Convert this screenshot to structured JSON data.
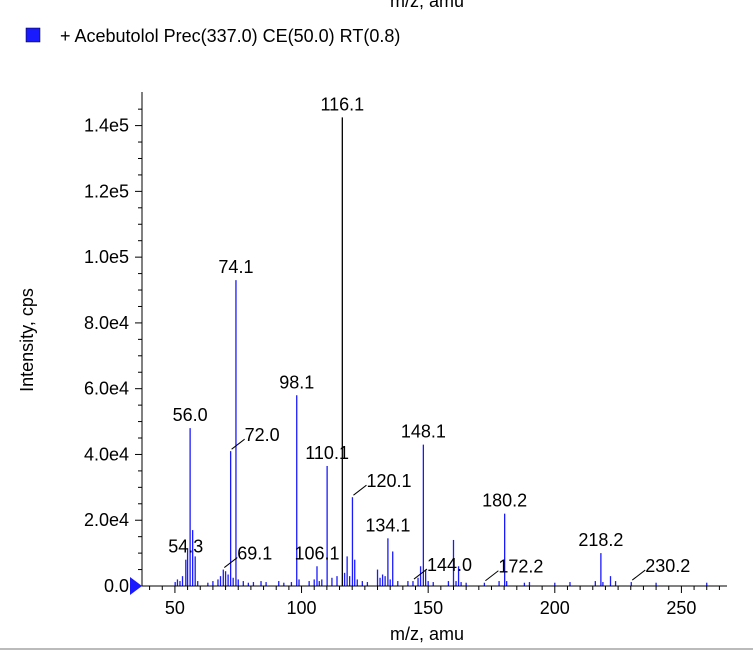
{
  "chart_data": {
    "type": "bar",
    "top_label_cut": "m/z, amu",
    "legend": {
      "label": "+ Acebutolol Prec(337.0) CE(50.0) RT(0.8)",
      "color": "#1a1aff"
    },
    "xlabel": "m/z, amu",
    "ylabel": "Intensity, cps",
    "xlim": [
      37,
      268
    ],
    "ylim": [
      0,
      149000
    ],
    "x_ticks": [
      50,
      100,
      150,
      200,
      250
    ],
    "x_tick_labels": [
      "50",
      "100",
      "150",
      "200",
      "250"
    ],
    "y_ticks": [
      0,
      20000,
      40000,
      60000,
      80000,
      100000,
      120000,
      140000
    ],
    "y_tick_labels": [
      "0.0",
      "2.0e4",
      "4.0e4",
      "6.0e4",
      "8.0e4",
      "1.0e5",
      "1.2e5",
      "1.4e5"
    ],
    "bar_color": "#1a1aff",
    "major_peak_color": "#000000",
    "peaks": [
      {
        "x": 50.1,
        "y": 1200
      },
      {
        "x": 51.0,
        "y": 2000
      },
      {
        "x": 52.0,
        "y": 1500
      },
      {
        "x": 53.0,
        "y": 3000
      },
      {
        "x": 54.3,
        "y": 8000
      },
      {
        "x": 55.0,
        "y": 11500
      },
      {
        "x": 56.0,
        "y": 48000
      },
      {
        "x": 57.0,
        "y": 17000
      },
      {
        "x": 58.0,
        "y": 9000
      },
      {
        "x": 59.0,
        "y": 1500
      },
      {
        "x": 63.0,
        "y": 1000
      },
      {
        "x": 65.0,
        "y": 1500
      },
      {
        "x": 67.0,
        "y": 2000
      },
      {
        "x": 68.0,
        "y": 3000
      },
      {
        "x": 69.1,
        "y": 5000
      },
      {
        "x": 70.0,
        "y": 4500
      },
      {
        "x": 71.0,
        "y": 3500
      },
      {
        "x": 72.0,
        "y": 41000
      },
      {
        "x": 73.0,
        "y": 2500
      },
      {
        "x": 74.1,
        "y": 93000
      },
      {
        "x": 75.0,
        "y": 2000
      },
      {
        "x": 77.0,
        "y": 1500
      },
      {
        "x": 79.0,
        "y": 1000
      },
      {
        "x": 81.0,
        "y": 1200
      },
      {
        "x": 84.0,
        "y": 1500
      },
      {
        "x": 86.0,
        "y": 1200
      },
      {
        "x": 91.0,
        "y": 1500
      },
      {
        "x": 93.0,
        "y": 1000
      },
      {
        "x": 96.0,
        "y": 1200
      },
      {
        "x": 98.1,
        "y": 58000
      },
      {
        "x": 99.0,
        "y": 2000
      },
      {
        "x": 103.0,
        "y": 1500
      },
      {
        "x": 105.0,
        "y": 2000
      },
      {
        "x": 106.1,
        "y": 6000
      },
      {
        "x": 107.0,
        "y": 1500
      },
      {
        "x": 108.0,
        "y": 2000
      },
      {
        "x": 110.1,
        "y": 36500
      },
      {
        "x": 112.0,
        "y": 2500
      },
      {
        "x": 114.0,
        "y": 3000
      },
      {
        "x": 116.1,
        "y": 142500
      },
      {
        "x": 117.0,
        "y": 4000
      },
      {
        "x": 118.0,
        "y": 9000
      },
      {
        "x": 119.0,
        "y": 3000
      },
      {
        "x": 120.1,
        "y": 27000
      },
      {
        "x": 121.0,
        "y": 8000
      },
      {
        "x": 122.0,
        "y": 2000
      },
      {
        "x": 124.0,
        "y": 1500
      },
      {
        "x": 126.0,
        "y": 1200
      },
      {
        "x": 130.0,
        "y": 5000
      },
      {
        "x": 131.0,
        "y": 2500
      },
      {
        "x": 132.0,
        "y": 3500
      },
      {
        "x": 133.0,
        "y": 3000
      },
      {
        "x": 134.1,
        "y": 14500
      },
      {
        "x": 135.0,
        "y": 2000
      },
      {
        "x": 136.0,
        "y": 10500
      },
      {
        "x": 138.0,
        "y": 1500
      },
      {
        "x": 142.0,
        "y": 1500
      },
      {
        "x": 144.0,
        "y": 1500
      },
      {
        "x": 146.0,
        "y": 2500
      },
      {
        "x": 147.0,
        "y": 6000
      },
      {
        "x": 148.1,
        "y": 43000
      },
      {
        "x": 149.0,
        "y": 5000
      },
      {
        "x": 150.0,
        "y": 1500
      },
      {
        "x": 152.0,
        "y": 1200
      },
      {
        "x": 158.0,
        "y": 1500
      },
      {
        "x": 160.0,
        "y": 14000
      },
      {
        "x": 161.0,
        "y": 1500
      },
      {
        "x": 162.0,
        "y": 6000
      },
      {
        "x": 163.0,
        "y": 1200
      },
      {
        "x": 165.0,
        "y": 1000
      },
      {
        "x": 172.2,
        "y": 1000
      },
      {
        "x": 178.0,
        "y": 1500
      },
      {
        "x": 180.2,
        "y": 22000
      },
      {
        "x": 181.0,
        "y": 1500
      },
      {
        "x": 188.0,
        "y": 1000
      },
      {
        "x": 190.0,
        "y": 1200
      },
      {
        "x": 200.0,
        "y": 1000
      },
      {
        "x": 206.0,
        "y": 1200
      },
      {
        "x": 216.0,
        "y": 1500
      },
      {
        "x": 218.2,
        "y": 10000
      },
      {
        "x": 219.0,
        "y": 1200
      },
      {
        "x": 222.0,
        "y": 3000
      },
      {
        "x": 224.0,
        "y": 1500
      },
      {
        "x": 230.2,
        "y": 1200
      },
      {
        "x": 240.0,
        "y": 1000
      },
      {
        "x": 260.0,
        "y": 1000
      }
    ],
    "annotations": [
      {
        "label": "116.1",
        "x": 116.1,
        "y": 142500,
        "pos": "top",
        "leader": false
      },
      {
        "label": "74.1",
        "x": 74.1,
        "y": 93000,
        "pos": "top",
        "leader": false
      },
      {
        "label": "98.1",
        "x": 98.1,
        "y": 58000,
        "pos": "top",
        "leader": false
      },
      {
        "label": "56.0",
        "x": 56.0,
        "y": 48000,
        "pos": "top",
        "leader": false
      },
      {
        "label": "72.0",
        "x": 72.0,
        "y": 41000,
        "pos": "right",
        "leader": true
      },
      {
        "label": "110.1",
        "x": 110.1,
        "y": 36500,
        "pos": "top",
        "leader": false
      },
      {
        "label": "148.1",
        "x": 148.1,
        "y": 43000,
        "pos": "top",
        "leader": false
      },
      {
        "label": "120.1",
        "x": 120.1,
        "y": 27000,
        "pos": "right",
        "leader": true
      },
      {
        "label": "180.2",
        "x": 180.2,
        "y": 22000,
        "pos": "top",
        "leader": false
      },
      {
        "label": "134.1",
        "x": 134.1,
        "y": 14500,
        "pos": "top",
        "leader": false
      },
      {
        "label": "54.3",
        "x": 54.3,
        "y": 8000,
        "pos": "top",
        "leader": false
      },
      {
        "label": "69.1",
        "x": 69.1,
        "y": 5000,
        "pos": "right",
        "leader": true
      },
      {
        "label": "106.1",
        "x": 106.1,
        "y": 6000,
        "pos": "top",
        "leader": false
      },
      {
        "label": "144.0",
        "x": 144.0,
        "y": 1500,
        "pos": "right",
        "leader": true
      },
      {
        "label": "218.2",
        "x": 218.2,
        "y": 10000,
        "pos": "top",
        "leader": false
      },
      {
        "label": "172.2",
        "x": 172.2,
        "y": 1000,
        "pos": "right",
        "leader": true
      },
      {
        "label": "230.2",
        "x": 230.2,
        "y": 1200,
        "pos": "right",
        "leader": true
      }
    ]
  }
}
